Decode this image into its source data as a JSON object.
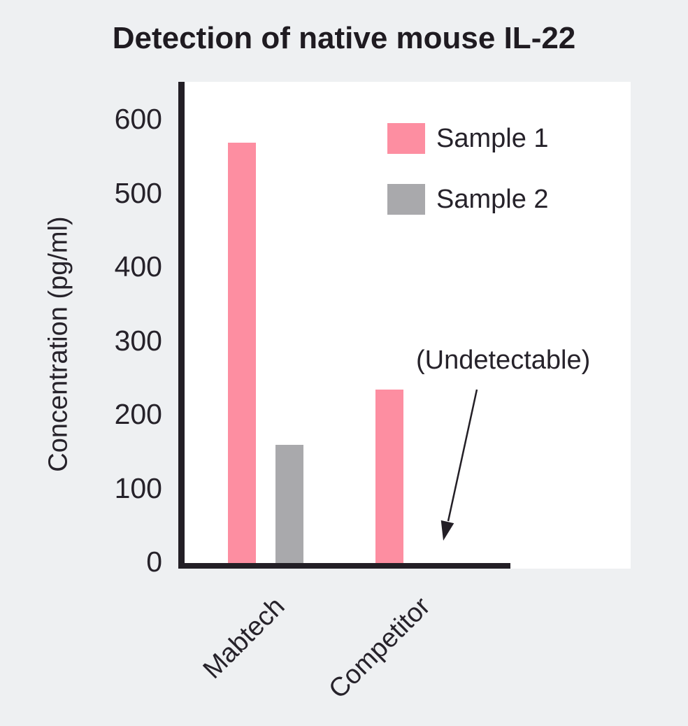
{
  "page": {
    "background_color": "#eef0f2",
    "plot_background_color": "#ffffff",
    "axis_color": "#231f26",
    "text_color": "#26222a"
  },
  "chart_data": {
    "type": "bar",
    "title": "Detection of native mouse IL-22",
    "ylabel": "Concentration (pg/ml)",
    "xlabel": "",
    "categories": [
      "Mabtech",
      "Competitor"
    ],
    "series": [
      {
        "name": "Sample 1",
        "color": "#fd8ea1",
        "values": [
          570,
          235
        ]
      },
      {
        "name": "Sample 2",
        "color": "#a9a9ac",
        "values": [
          160,
          0
        ]
      }
    ],
    "yticks": [
      0,
      100,
      200,
      300,
      400,
      500,
      600
    ],
    "ylim": [
      0,
      600
    ],
    "grid": false,
    "legend_position": "upper-right",
    "annotation": {
      "text": "(Undetectable)",
      "meaning": "Competitor Sample 2 value is 0 (undetectable)"
    }
  }
}
